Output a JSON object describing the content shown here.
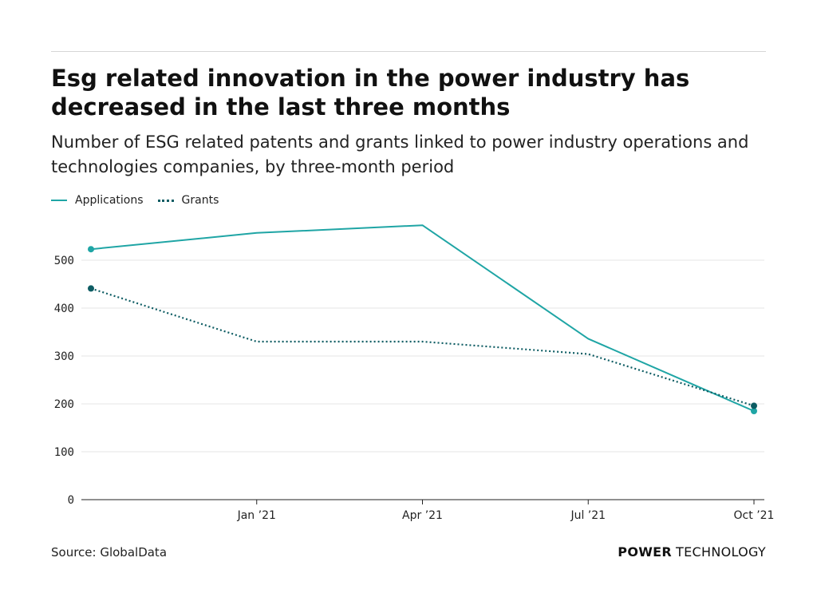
{
  "title": "Esg related innovation in the power industry has decreased in the last three months",
  "subtitle": "Number of ESG related patents and grants linked to power industry operations and technologies companies, by three-month period",
  "legend": {
    "applications_label": "Applications",
    "grants_label": "Grants"
  },
  "source": "Source: GlobalData",
  "brand": {
    "bold": "POWER",
    "light": "TECHNOLOGY"
  },
  "colors": {
    "applications": "#1fa5a5",
    "grants": "#0d5c63",
    "grid": "#e4e4e4",
    "axis": "#222222"
  },
  "chart_data": {
    "type": "line",
    "title": "Esg related innovation in the power industry has decreased in the last three months",
    "subtitle": "Number of ESG related patents and grants linked to power industry operations and technologies companies, by three-month period",
    "x": [
      "2020-10",
      "2021-01",
      "2021-04",
      "2021-07",
      "2021-10"
    ],
    "x_tick_labels": [
      {
        "label": "Jan ’21",
        "x": "2021-01"
      },
      {
        "label": "Apr ’21",
        "x": "2021-04"
      },
      {
        "label": "Jul ’21",
        "x": "2021-07"
      },
      {
        "label": "Oct ’21",
        "x": "2021-10"
      }
    ],
    "series": [
      {
        "name": "Applications",
        "style": "solid",
        "values": [
          523,
          557,
          573,
          336,
          185
        ]
      },
      {
        "name": "Grants",
        "style": "dotted",
        "values": [
          441,
          330,
          330,
          304,
          196
        ]
      }
    ],
    "ylim": [
      0,
      600
    ],
    "y_ticks": [
      0,
      100,
      200,
      300,
      400,
      500
    ],
    "grid": true,
    "legend": "top-left"
  }
}
